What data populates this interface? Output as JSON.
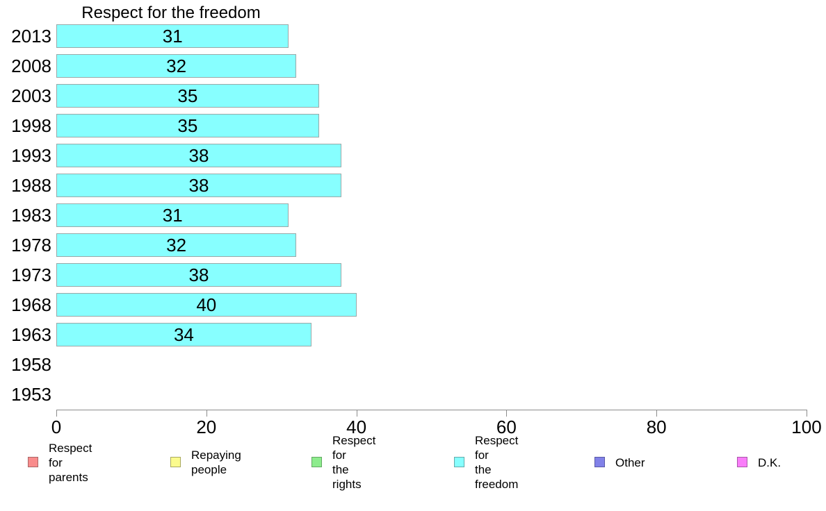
{
  "title": "Respect for the freedom",
  "chart_data": {
    "type": "bar",
    "orientation": "horizontal",
    "title": "Respect for the freedom",
    "categories": [
      "2013",
      "2008",
      "2003",
      "1998",
      "1993",
      "1988",
      "1983",
      "1978",
      "1973",
      "1968",
      "1963",
      "1958",
      "1953"
    ],
    "values": [
      31,
      32,
      35,
      35,
      38,
      38,
      31,
      32,
      38,
      40,
      34,
      null,
      null
    ],
    "value_labels": [
      "31",
      "32",
      "35",
      "35",
      "38",
      "38",
      "31",
      "32",
      "38",
      "40",
      "34",
      "",
      ""
    ],
    "xlim": [
      0,
      100
    ],
    "x_ticks": [
      "0",
      "20",
      "40",
      "60",
      "80",
      "100"
    ],
    "x_tick_values": [
      0,
      20,
      40,
      60,
      80,
      100
    ],
    "grid": false,
    "bar_color": "#87ffff",
    "bar_border_color": "#9aa8a8",
    "legend_position": "bottom"
  },
  "legend": {
    "items": [
      {
        "name": "respect-for-parents",
        "label": "Respect for parents",
        "color": "#f98c8c",
        "border": "#a96666"
      },
      {
        "name": "repaying-people",
        "label": "Repaying people",
        "color": "#fbfb8e",
        "border": "#a8a860"
      },
      {
        "name": "respect-for-the-rights",
        "label": "Respect for\nthe rights",
        "color": "#8dec8d",
        "border": "#62a862"
      },
      {
        "name": "respect-for-the-freedom",
        "label": "Respect for\nthe freedom",
        "color": "#87ffff",
        "border": "#62abab"
      },
      {
        "name": "other",
        "label": "Other",
        "color": "#8181e8",
        "border": "#5a5aa6"
      },
      {
        "name": "dk",
        "label": "D.K.",
        "color": "#f97df9",
        "border": "#a858a8"
      }
    ]
  }
}
